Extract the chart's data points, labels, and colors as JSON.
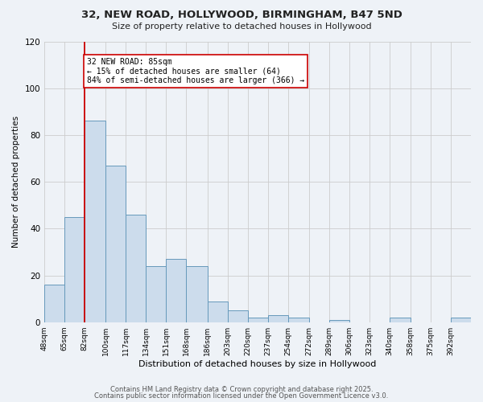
{
  "title": "32, NEW ROAD, HOLLYWOOD, BIRMINGHAM, B47 5ND",
  "subtitle": "Size of property relative to detached houses in Hollywood",
  "xlabel": "Distribution of detached houses by size in Hollywood",
  "ylabel": "Number of detached properties",
  "bins": [
    48,
    65,
    82,
    100,
    117,
    134,
    151,
    168,
    186,
    203,
    220,
    237,
    254,
    272,
    289,
    306,
    323,
    340,
    358,
    375,
    392
  ],
  "bin_labels": [
    "48sqm",
    "65sqm",
    "82sqm",
    "100sqm",
    "117sqm",
    "134sqm",
    "151sqm",
    "168sqm",
    "186sqm",
    "203sqm",
    "220sqm",
    "237sqm",
    "254sqm",
    "272sqm",
    "289sqm",
    "306sqm",
    "323sqm",
    "340sqm",
    "358sqm",
    "375sqm",
    "392sqm"
  ],
  "counts": [
    16,
    45,
    86,
    67,
    46,
    24,
    27,
    24,
    9,
    5,
    2,
    3,
    2,
    0,
    1,
    0,
    0,
    2,
    0,
    0,
    2
  ],
  "bar_color": "#ccdcec",
  "bar_edge_color": "#6699bb",
  "grid_color": "#cccccc",
  "bg_color": "#eef2f7",
  "vline_x": 82,
  "vline_color": "#cc0000",
  "annotation_box_color": "#ffffff",
  "annotation_box_edge": "#cc0000",
  "property_label": "32 NEW ROAD: 85sqm",
  "annotation_line1": "← 15% of detached houses are smaller (64)",
  "annotation_line2": "84% of semi-detached houses are larger (366) →",
  "ylim": [
    0,
    120
  ],
  "yticks": [
    0,
    20,
    40,
    60,
    80,
    100,
    120
  ],
  "footer1": "Contains HM Land Registry data © Crown copyright and database right 2025.",
  "footer2": "Contains public sector information licensed under the Open Government Licence v3.0."
}
